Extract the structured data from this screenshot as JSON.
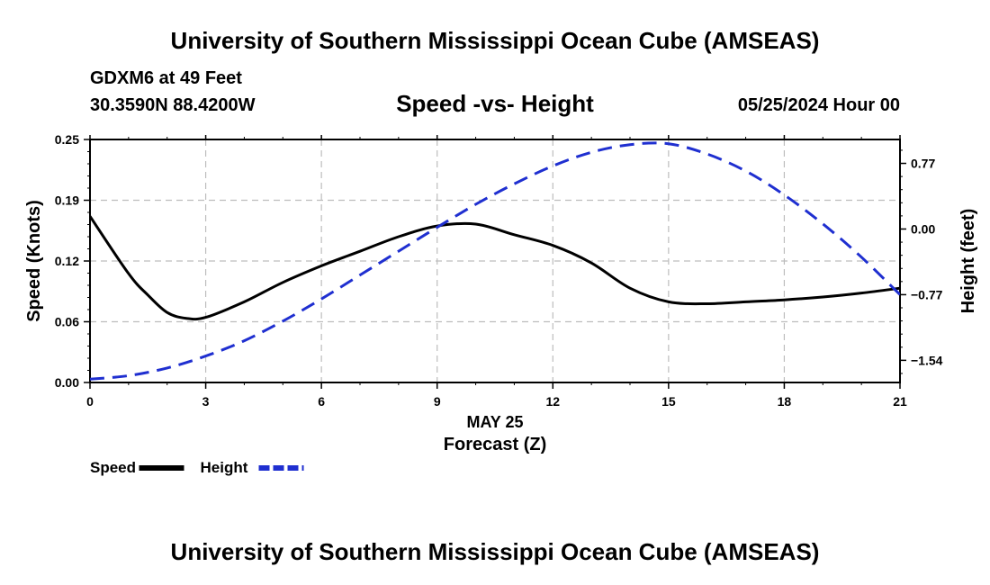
{
  "header": {
    "title": "University of Southern Mississippi Ocean Cube (AMSEAS)",
    "station": "GDXM6 at 49 Feet",
    "coords": "30.3590N  88.4200W",
    "subtitle": "Speed -vs- Height",
    "datetime": "05/25/2024 Hour 00"
  },
  "footer": {
    "title": "University of Southern Mississippi Ocean Cube (AMSEAS)"
  },
  "chart_data": {
    "type": "line",
    "xlabel": "Forecast (Z)",
    "xdate_label": "MAY 25",
    "ylabel_left": "Speed (Knots)",
    "ylabel_right": "Height (feet)",
    "xlim": [
      0,
      21
    ],
    "ylim_left": [
      0,
      0.25
    ],
    "ylim_right": [
      -1.8,
      1.05
    ],
    "x_ticks": [
      0,
      3,
      6,
      9,
      12,
      15,
      18,
      21
    ],
    "x_tick_labels": [
      "0",
      "3",
      "6",
      "9",
      "12",
      "15",
      "18",
      "21"
    ],
    "y_left_ticks": [
      0,
      0.0625,
      0.125,
      0.1875,
      0.25
    ],
    "y_left_tick_labels": [
      "0.00",
      "0.06",
      "0.12",
      "0.19",
      "0.25"
    ],
    "y_right_ticks": [
      0.77,
      0,
      -0.77,
      -1.54
    ],
    "y_right_tick_labels": [
      "0.77",
      "0.00",
      "−0.77",
      "−1.54"
    ],
    "grid": true,
    "series": [
      {
        "name": "Speed",
        "axis": "left",
        "color": "#000000",
        "style": "solid",
        "x": [
          0,
          1,
          1.5,
          2,
          2.5,
          3,
          4,
          5,
          6,
          7,
          8,
          9,
          10,
          11,
          12,
          13,
          14,
          15,
          16,
          17,
          18,
          19,
          20,
          21
        ],
        "y": [
          0.171,
          0.112,
          0.09,
          0.072,
          0.066,
          0.067,
          0.083,
          0.103,
          0.12,
          0.135,
          0.15,
          0.161,
          0.163,
          0.152,
          0.141,
          0.123,
          0.097,
          0.083,
          0.081,
          0.083,
          0.085,
          0.088,
          0.092,
          0.097
        ]
      },
      {
        "name": "Height",
        "axis": "right",
        "color": "#1f2fd0",
        "style": "dashed",
        "x": [
          0,
          1,
          2,
          3,
          4,
          5,
          6,
          7,
          8,
          9,
          10,
          11,
          12,
          13,
          14,
          15,
          16,
          17,
          18,
          19,
          20,
          21
        ],
        "y": [
          -1.76,
          -1.72,
          -1.63,
          -1.49,
          -1.31,
          -1.08,
          -0.82,
          -0.54,
          -0.26,
          0.02,
          0.29,
          0.53,
          0.74,
          0.9,
          0.99,
          1.0,
          0.88,
          0.68,
          0.4,
          0.06,
          -0.33,
          -0.77
        ]
      }
    ],
    "legend": [
      {
        "label": "Speed",
        "color": "#000000"
      },
      {
        "label": "Height",
        "color": "#1f2fd0"
      }
    ],
    "legend_position": "bottom-left"
  }
}
